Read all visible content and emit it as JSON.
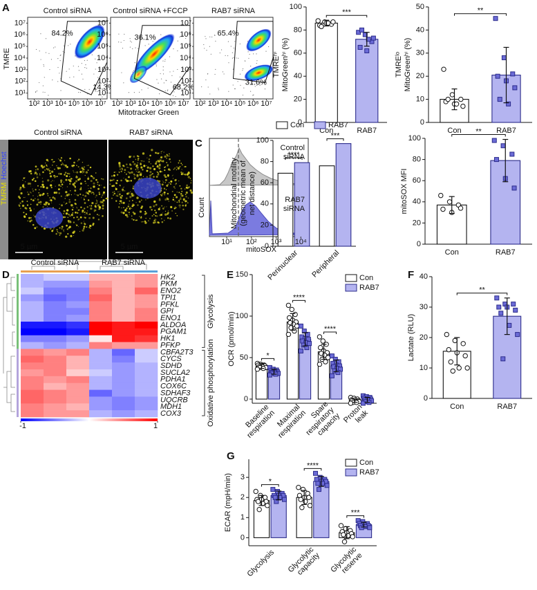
{
  "panel_labels": [
    "A",
    "B",
    "C",
    "D",
    "E",
    "F",
    "G"
  ],
  "chart_data": [
    {
      "type": "density",
      "xlabel": "Mitotracker Green",
      "ylabel": "TMRE",
      "xlim": [
        1.5,
        7.5
      ],
      "ylim": [
        0.5,
        7.5
      ],
      "xticks": [
        {
          "value": 2,
          "label": "10²"
        },
        {
          "value": 3,
          "label": "10³"
        },
        {
          "value": 4,
          "label": "10⁴"
        },
        {
          "value": 5,
          "label": "10⁵"
        },
        {
          "value": 6,
          "label": "10⁶"
        },
        {
          "value": 7,
          "label": "10⁷"
        }
      ],
      "yticks": [
        {
          "value": 1,
          "label": "10¹"
        },
        {
          "value": 2,
          "label": "10²"
        },
        {
          "value": 3,
          "label": "10³"
        },
        {
          "value": 4,
          "label": "10⁴"
        },
        {
          "value": 5,
          "label": "10⁵"
        },
        {
          "value": 6,
          "label": "10⁶"
        },
        {
          "value": 7,
          "label": "10⁷"
        }
      ],
      "plots": [
        {
          "title": "Control siRNA",
          "gate_values": [
            84.2,
            14.3
          ],
          "gate_labels": [
            "84.2%",
            "14.3%"
          ]
        },
        {
          "title": "Control siRNA +FCCP",
          "gate_values": [
            36.1,
            68.2
          ],
          "gate_labels": [
            "36.1%",
            "68.2%"
          ]
        },
        {
          "title": "RAB7 siRNA",
          "gate_values": [
            65.4,
            31.6
          ],
          "gate_labels": [
            "65.4%",
            "31.6%"
          ]
        }
      ]
    },
    {
      "type": "bar",
      "ylabel": [
        "TMREʰⁱ",
        "MitoGreenʰⁱ (%)"
      ],
      "categories": [
        "Con",
        "RAB7"
      ],
      "values": [
        86,
        72
      ],
      "errors": [
        2.5,
        6
      ],
      "colors": [
        "#ffffff",
        "#b4b4f0"
      ],
      "markers": [
        "circle",
        "square"
      ],
      "points": [
        [
          88,
          87,
          85,
          84,
          86,
          87,
          83,
          86
        ],
        [
          78,
          76,
          70,
          65,
          62,
          73,
          80,
          72
        ]
      ],
      "ylim": [
        0,
        100
      ],
      "yticks": [
        0,
        20,
        40,
        60,
        80,
        100
      ],
      "significance": [
        "***"
      ]
    },
    {
      "type": "bar",
      "ylabel": [
        "TMREˡᵒ",
        "MitoGreenʰⁱ (%)"
      ],
      "categories": [
        "Con",
        "RAB7"
      ],
      "values": [
        10,
        20.5
      ],
      "errors": [
        4.5,
        12
      ],
      "colors": [
        "#ffffff",
        "#b4b4f0"
      ],
      "markers": [
        "circle",
        "square"
      ],
      "points": [
        [
          23,
          12,
          10,
          9,
          8,
          7,
          10,
          8
        ],
        [
          45,
          28,
          21,
          20,
          18,
          15,
          10,
          8
        ]
      ],
      "ylim": [
        0,
        50
      ],
      "yticks": [
        0,
        10,
        20,
        30,
        40,
        50
      ],
      "significance": [
        "**"
      ]
    },
    {
      "type": "micrograph",
      "titles": [
        "Control siRNA",
        "RAB7 siRNA"
      ],
      "stain_labels": [
        "TMRM",
        "Hoechst"
      ],
      "scale_bar_label": "5 µm"
    },
    {
      "type": "bar",
      "ylabel": [
        "Mitochondrial motility",
        "(geometric mean of",
        "net distance)"
      ],
      "categories": [
        "Perinuclear",
        "Peripheral"
      ],
      "series": [
        {
          "name": "Con",
          "color": "#ffffff",
          "marker": "circle",
          "values": [
            69,
            76
          ]
        },
        {
          "name": "RAB7",
          "color": "#b4b4f0",
          "marker": "square",
          "values": [
            79,
            97
          ]
        }
      ],
      "ylim": [
        0,
        100
      ],
      "yticks": [
        0,
        20,
        40,
        60,
        80,
        100
      ],
      "significance": [
        "****",
        "***"
      ],
      "legend": "top"
    },
    {
      "type": "histogram_overlay",
      "samples": [
        [
          "Control",
          "siRNA"
        ],
        [
          "RAB7",
          "siRNA"
        ]
      ],
      "ylabel": "Count",
      "xlabel": "mitoSOX",
      "xlim": [
        0.3,
        4.3
      ],
      "xticks": [
        {
          "value": 1,
          "label": "10¹"
        },
        {
          "value": 2,
          "label": "10²"
        },
        {
          "value": 3,
          "label": "10³"
        },
        {
          "value": 4,
          "label": "10⁴"
        }
      ]
    },
    {
      "type": "bar",
      "ylabel": [
        "mitoSOX MFI"
      ],
      "categories": [
        "Con",
        "RAB7"
      ],
      "values": [
        37,
        79
      ],
      "errors": [
        8,
        20
      ],
      "colors": [
        "#ffffff",
        "#b4b4f0"
      ],
      "markers": [
        "circle",
        "square"
      ],
      "points": [
        [
          46,
          40,
          37,
          33,
          30,
          34
        ],
        [
          98,
          93,
          85,
          80,
          62,
          53
        ]
      ],
      "ylim": [
        0,
        100
      ],
      "yticks": [
        0,
        20,
        40,
        60,
        80,
        100
      ],
      "significance": [
        "**"
      ]
    },
    {
      "type": "heatmap",
      "column_groups": [
        "Control siRNA",
        "RAB7 siRNA"
      ],
      "row_groups": [
        {
          "name": "Glycolysis",
          "rows": [
            "HK2",
            "PKM",
            "ENO2",
            "TPI1",
            "PFKL",
            "GPI",
            "ENO1",
            "ALDOA",
            "PGAM1",
            "HK1",
            "PFKP"
          ]
        },
        {
          "name": "Oxidative phosphorylation",
          "rows": [
            "CBFA2T3",
            "CYCS",
            "SDHD",
            "SUCLA2",
            "PDHA1",
            "COX6C",
            "SDHAF3",
            "UQCRB",
            "MDH1",
            "COX3"
          ]
        }
      ],
      "values": [
        [
          -0.3,
          -0.2,
          -0.2,
          0.3,
          0.3,
          0.4
        ],
        [
          -0.3,
          -0.4,
          -0.4,
          0.4,
          0.3,
          0.4
        ],
        [
          -0.2,
          -0.5,
          -0.5,
          0.5,
          0.3,
          0.6
        ],
        [
          -0.4,
          -0.6,
          -0.5,
          0.6,
          0.3,
          0.4
        ],
        [
          -0.3,
          -0.5,
          -0.4,
          0.5,
          0.3,
          0.4
        ],
        [
          -0.3,
          -0.5,
          -0.5,
          0.5,
          0.3,
          0.5
        ],
        [
          -0.3,
          -0.5,
          -0.4,
          0.5,
          0.3,
          0.5
        ],
        [
          -0.9,
          -0.9,
          -0.8,
          1,
          0.9,
          1
        ],
        [
          -1,
          -1,
          -0.9,
          1,
          0.9,
          0.9
        ],
        [
          -0.5,
          -0.5,
          -0.4,
          0.1,
          0.9,
          0.8
        ],
        [
          -0.3,
          -0.4,
          -0.3,
          0.5,
          0.4,
          0.4
        ],
        [
          0.5,
          0.4,
          0.5,
          -0.3,
          -0.6,
          -0.2
        ],
        [
          0.6,
          0.5,
          0.3,
          -0.3,
          -0.5,
          -0.2
        ],
        [
          0.5,
          0.5,
          0.3,
          -0.3,
          -0.4,
          -0.3
        ],
        [
          0.4,
          0.5,
          0.2,
          -0.2,
          -0.4,
          -0.3
        ],
        [
          0.5,
          0.4,
          0.5,
          -0.3,
          -0.4,
          -0.3
        ],
        [
          0.5,
          0.3,
          0.4,
          -0.3,
          -0.4,
          -0.3
        ],
        [
          0.6,
          0.5,
          0.4,
          -0.6,
          -0.4,
          -0.3
        ],
        [
          0.6,
          0.5,
          0.4,
          -0.4,
          -0.5,
          -0.4
        ],
        [
          0.5,
          0.4,
          0.3,
          -0.4,
          -0.5,
          -0.4
        ],
        [
          0.5,
          0.4,
          0.4,
          -0.3,
          -0.4,
          -0.3
        ]
      ],
      "colorbar_ticks": [
        -1,
        1
      ]
    },
    {
      "type": "bar",
      "ylabel": [
        "OCR  (pmol/min)"
      ],
      "categories": [
        [
          "Baseline",
          "respiration"
        ],
        [
          "Maximal",
          "respiration"
        ],
        [
          "Spare",
          "respiratory",
          "capacity"
        ],
        [
          "Proton",
          "leak"
        ]
      ],
      "series": [
        {
          "name": "Con",
          "color": "#ffffff",
          "marker": "circle",
          "values": [
            40,
            93,
            57,
            -2
          ],
          "errors": [
            3,
            10,
            9,
            2
          ],
          "points": [
            [
              43,
              42,
              41,
              41,
              40,
              40,
              39,
              39,
              38,
              38,
              37,
              36
            ],
            [
              113,
              108,
              102,
              98,
              95,
              93,
              92,
              90,
              88,
              86,
              82,
              78
            ],
            [
              75,
              70,
              66,
              62,
              58,
              56,
              55,
              53,
              50,
              48,
              45,
              42
            ],
            [
              2,
              1,
              0,
              -1,
              -1,
              -2,
              -2,
              -3,
              -3,
              -4,
              -4,
              -5
            ]
          ]
        },
        {
          "name": "RAB7",
          "color": "#b4b4f0",
          "marker": "square",
          "values": [
            33,
            72,
            40,
            -1
          ],
          "errors": [
            3,
            8,
            7,
            3
          ],
          "points": [
            [
              38,
              36,
              35,
              34,
              33,
              33,
              32,
              32,
              31,
              31,
              30,
              29
            ],
            [
              88,
              82,
              78,
              75,
              73,
              72,
              70,
              68,
              67,
              65,
              62,
              58
            ],
            [
              52,
              48,
              45,
              43,
              41,
              40,
              39,
              37,
              36,
              34,
              32,
              28
            ],
            [
              4,
              3,
              2,
              1,
              0,
              0,
              -1,
              -1,
              -2,
              -3,
              -4,
              -5
            ]
          ]
        }
      ],
      "ylim": [
        -5,
        150
      ],
      "yticks": [
        0,
        50,
        100,
        150
      ],
      "significance": [
        "*",
        "****",
        "****"
      ],
      "legend": "upper right"
    },
    {
      "type": "bar",
      "ylabel": [
        "Lactate (RLU)"
      ],
      "categories": [
        "Con",
        "RAB7"
      ],
      "values": [
        15.5,
        27
      ],
      "errors": [
        4.5,
        6
      ],
      "colors": [
        "#ffffff",
        "#b4b4f0"
      ],
      "markers": [
        "circle",
        "square"
      ],
      "points": [
        [
          21,
          19,
          18,
          16,
          15,
          14,
          12,
          10,
          10,
          9
        ],
        [
          33,
          31,
          31,
          30,
          30,
          29,
          28,
          24,
          21,
          13
        ]
      ],
      "ylim": [
        0,
        40
      ],
      "yticks": [
        0,
        10,
        20,
        30,
        40
      ],
      "significance": [
        "**"
      ]
    },
    {
      "type": "bar",
      "ylabel": [
        "ECAR (mpH/min)"
      ],
      "categories": [
        "Glycolysis",
        [
          "Glycolytic",
          "capacity"
        ],
        [
          "Glycolytic",
          "reserve"
        ]
      ],
      "series": [
        {
          "name": "Con",
          "color": "#ffffff",
          "marker": "circle",
          "values": [
            1.85,
            2.0,
            0.25
          ],
          "errors": [
            0.25,
            0.35,
            0.3
          ],
          "points": [
            [
              2.3,
              2.1,
              2.0,
              1.9,
              1.9,
              1.8,
              1.8,
              1.7,
              1.6,
              1.4
            ],
            [
              2.5,
              2.4,
              2.2,
              2.1,
              2.0,
              2.0,
              1.9,
              1.8,
              1.6,
              1.5
            ],
            [
              0.6,
              0.45,
              0.35,
              0.3,
              0.25,
              0.2,
              0.15,
              0.1,
              0.05,
              -0.2
            ]
          ]
        },
        {
          "name": "RAB7",
          "color": "#b4b4f0",
          "marker": "square",
          "values": [
            2.1,
            2.8,
            0.65
          ],
          "errors": [
            0.22,
            0.25,
            0.12
          ],
          "points": [
            [
              2.4,
              2.3,
              2.2,
              2.1,
              2.1,
              2.1,
              2.0,
              2.0,
              1.9,
              1.8
            ],
            [
              3.2,
              3.0,
              2.9,
              2.9,
              2.8,
              2.8,
              2.7,
              2.7,
              2.6,
              2.4
            ],
            [
              0.85,
              0.8,
              0.7,
              0.7,
              0.65,
              0.6,
              0.6,
              0.55,
              0.5,
              0.5
            ]
          ]
        }
      ],
      "ylim": [
        -0.4,
        3.9
      ],
      "yticks": [
        0,
        1,
        2,
        3
      ],
      "significance": [
        "*",
        "****",
        "***"
      ],
      "legend": "upper right"
    }
  ]
}
